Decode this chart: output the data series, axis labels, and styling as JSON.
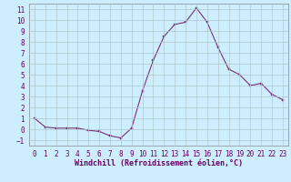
{
  "x": [
    0,
    1,
    2,
    3,
    4,
    5,
    6,
    7,
    8,
    9,
    10,
    11,
    12,
    13,
    14,
    15,
    16,
    17,
    18,
    19,
    20,
    21,
    22,
    23
  ],
  "y": [
    1,
    0.2,
    0.1,
    0.1,
    0.1,
    -0.1,
    -0.2,
    -0.6,
    -0.8,
    0.1,
    3.5,
    6.3,
    8.5,
    9.6,
    9.8,
    11.1,
    9.8,
    7.5,
    5.5,
    5.0,
    4.0,
    4.2,
    3.2,
    2.7
  ],
  "line_color": "#7B2F7B",
  "marker": "s",
  "marker_size": 1.8,
  "bg_color": "#cceeff",
  "grid_color": "#b0c8c8",
  "xlabel": "Windchill (Refroidissement éolien,°C)",
  "xlim": [
    -0.5,
    23.5
  ],
  "ylim": [
    -1.5,
    11.5
  ],
  "yticks": [
    -1,
    0,
    1,
    2,
    3,
    4,
    5,
    6,
    7,
    8,
    9,
    10,
    11
  ],
  "xticks": [
    0,
    1,
    2,
    3,
    4,
    5,
    6,
    7,
    8,
    9,
    10,
    11,
    12,
    13,
    14,
    15,
    16,
    17,
    18,
    19,
    20,
    21,
    22,
    23
  ],
  "tick_color": "#660066",
  "label_fontsize": 5.5,
  "xlabel_fontsize": 6.0
}
